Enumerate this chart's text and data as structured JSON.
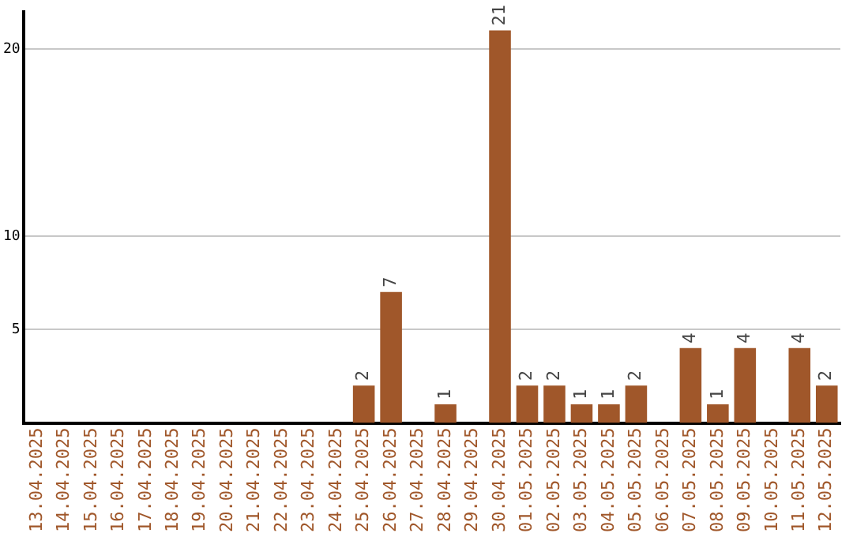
{
  "chart_data": {
    "type": "bar",
    "categories": [
      "13.04.2025",
      "14.04.2025",
      "15.04.2025",
      "16.04.2025",
      "17.04.2025",
      "18.04.2025",
      "19.04.2025",
      "20.04.2025",
      "21.04.2025",
      "22.04.2025",
      "23.04.2025",
      "24.04.2025",
      "25.04.2025",
      "26.04.2025",
      "27.04.2025",
      "28.04.2025",
      "29.04.2025",
      "30.04.2025",
      "01.05.2025",
      "02.05.2025",
      "03.05.2025",
      "04.05.2025",
      "05.05.2025",
      "06.05.2025",
      "07.05.2025",
      "08.05.2025",
      "09.05.2025",
      "10.05.2025",
      "11.05.2025",
      "12.05.2025"
    ],
    "values": [
      0,
      0,
      0,
      0,
      0,
      0,
      0,
      0,
      0,
      0,
      0,
      0,
      2,
      7,
      0,
      1,
      0,
      21,
      2,
      2,
      1,
      1,
      2,
      0,
      4,
      1,
      4,
      0,
      4,
      2
    ],
    "value_labels": [
      null,
      null,
      null,
      null,
      null,
      null,
      null,
      null,
      null,
      null,
      null,
      null,
      "2",
      "7",
      null,
      "1",
      null,
      "21",
      "2",
      "2",
      "1",
      "1",
      "2",
      null,
      "4",
      "1",
      "4",
      null,
      "4",
      "2"
    ],
    "color": "#a0572a",
    "ylim": [
      0,
      22
    ],
    "yticks": [
      5,
      10,
      20
    ],
    "grid": "y",
    "legend": false
  }
}
